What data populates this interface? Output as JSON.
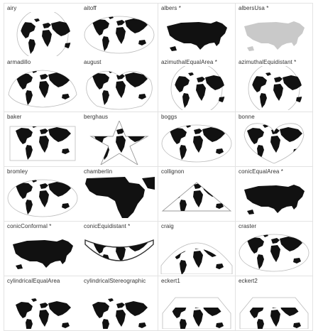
{
  "gallery": {
    "projections": [
      {
        "name": "airy",
        "icon": "globe-disc-icon",
        "color": "#111111"
      },
      {
        "name": "aitoff",
        "icon": "ellipse-world-icon",
        "color": "#111111"
      },
      {
        "name": "albers *",
        "icon": "usa-map-icon",
        "color": "#111111"
      },
      {
        "name": "albersUsa *",
        "icon": "usa-map-icon",
        "color": "#c9c9c9"
      },
      {
        "name": "armadillo",
        "icon": "armadillo-world-icon",
        "color": "#111111"
      },
      {
        "name": "august",
        "icon": "august-world-icon",
        "color": "#111111"
      },
      {
        "name": "azimuthalEqualArea *",
        "icon": "globe-disc-icon",
        "color": "#111111"
      },
      {
        "name": "azimuthalEquidistant *",
        "icon": "globe-disc-icon",
        "color": "#111111"
      },
      {
        "name": "baker",
        "icon": "baker-world-icon",
        "color": "#111111"
      },
      {
        "name": "berghaus",
        "icon": "star-world-icon",
        "color": "#111111"
      },
      {
        "name": "boggs",
        "icon": "ellipse-world-icon",
        "color": "#111111"
      },
      {
        "name": "bonne",
        "icon": "heart-world-icon",
        "color": "#111111"
      },
      {
        "name": "bromley",
        "icon": "ellipse-world-icon",
        "color": "#111111"
      },
      {
        "name": "chamberlin",
        "icon": "africa-map-icon",
        "color": "#111111"
      },
      {
        "name": "collignon",
        "icon": "triangle-world-icon",
        "color": "#111111"
      },
      {
        "name": "conicEqualArea *",
        "icon": "usa-map-icon",
        "color": "#111111"
      },
      {
        "name": "conicConformal *",
        "icon": "usa-map-icon",
        "color": "#111111"
      },
      {
        "name": "conicEquidistant *",
        "icon": "fan-world-icon",
        "color": "#111111"
      },
      {
        "name": "craig",
        "icon": "craig-world-icon",
        "color": "#111111"
      },
      {
        "name": "craster",
        "icon": "ellipse-world-icon",
        "color": "#111111"
      },
      {
        "name": "cylindricalEqualArea",
        "icon": "rect-world-icon",
        "color": "#111111"
      },
      {
        "name": "cylindricalStereographic",
        "icon": "rect-world-icon",
        "color": "#111111"
      },
      {
        "name": "eckert1",
        "icon": "octagon-world-icon",
        "color": "#111111"
      },
      {
        "name": "eckert2",
        "icon": "octagon-world-icon",
        "color": "#111111"
      }
    ]
  }
}
